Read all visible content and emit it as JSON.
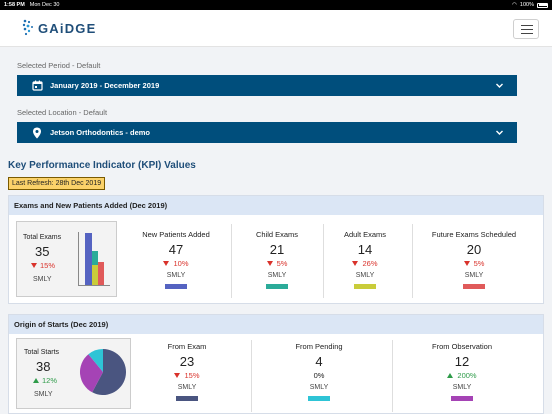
{
  "status_bar": {
    "time": "1:58 PM",
    "date": "Mon Dec 30",
    "battery": "100%"
  },
  "header": {
    "logo_text": "GAiDGE",
    "menu_icon": "hamburger-menu-icon"
  },
  "period": {
    "label": "Selected Period - Default",
    "value": "January 2019 - December 2019",
    "icon": "calendar-icon"
  },
  "location": {
    "label": "Selected Location - Default",
    "value": "Jetson Orthodontics - demo",
    "icon": "map-pin-icon"
  },
  "kpi": {
    "title": "Key Performance Indicator (KPI) Values",
    "last_refresh": "Last Refresh: 28th Dec 2019"
  },
  "exams_card": {
    "title": "Exams and New Patients Added (Dec 2019)",
    "total": {
      "label": "Total Exams",
      "value": "35",
      "change": "15%",
      "direction": "down",
      "smly": "SMLY"
    },
    "metrics": [
      {
        "label": "New Patients Added",
        "value": "47",
        "change": "10%",
        "direction": "down",
        "smly": "SMLY",
        "color": "#5563c1"
      },
      {
        "label": "Child Exams",
        "value": "21",
        "change": "5%",
        "direction": "down",
        "smly": "SMLY",
        "color": "#2bab99"
      },
      {
        "label": "Adult Exams",
        "value": "14",
        "change": "26%",
        "direction": "down",
        "smly": "SMLY",
        "color": "#c9cc3a"
      },
      {
        "label": "Future Exams Scheduled",
        "value": "20",
        "change": "5%",
        "direction": "down",
        "smly": "SMLY",
        "color": "#e05a5a"
      }
    ]
  },
  "starts_card": {
    "title": "Origin of Starts (Dec 2019)",
    "total": {
      "label": "Total Starts",
      "value": "38",
      "change": "12%",
      "direction": "up",
      "smly": "SMLY"
    },
    "metrics": [
      {
        "label": "From Exam",
        "value": "23",
        "change": "15%",
        "direction": "down",
        "smly": "SMLY",
        "color": "#4a5580"
      },
      {
        "label": "From Pending",
        "value": "4",
        "change": "0%",
        "direction": "neutral",
        "smly": "SMLY",
        "color": "#2ec4d6"
      },
      {
        "label": "From Observation",
        "value": "12",
        "change": "200%",
        "direction": "up",
        "smly": "SMLY",
        "color": "#a543b5"
      }
    ]
  }
}
